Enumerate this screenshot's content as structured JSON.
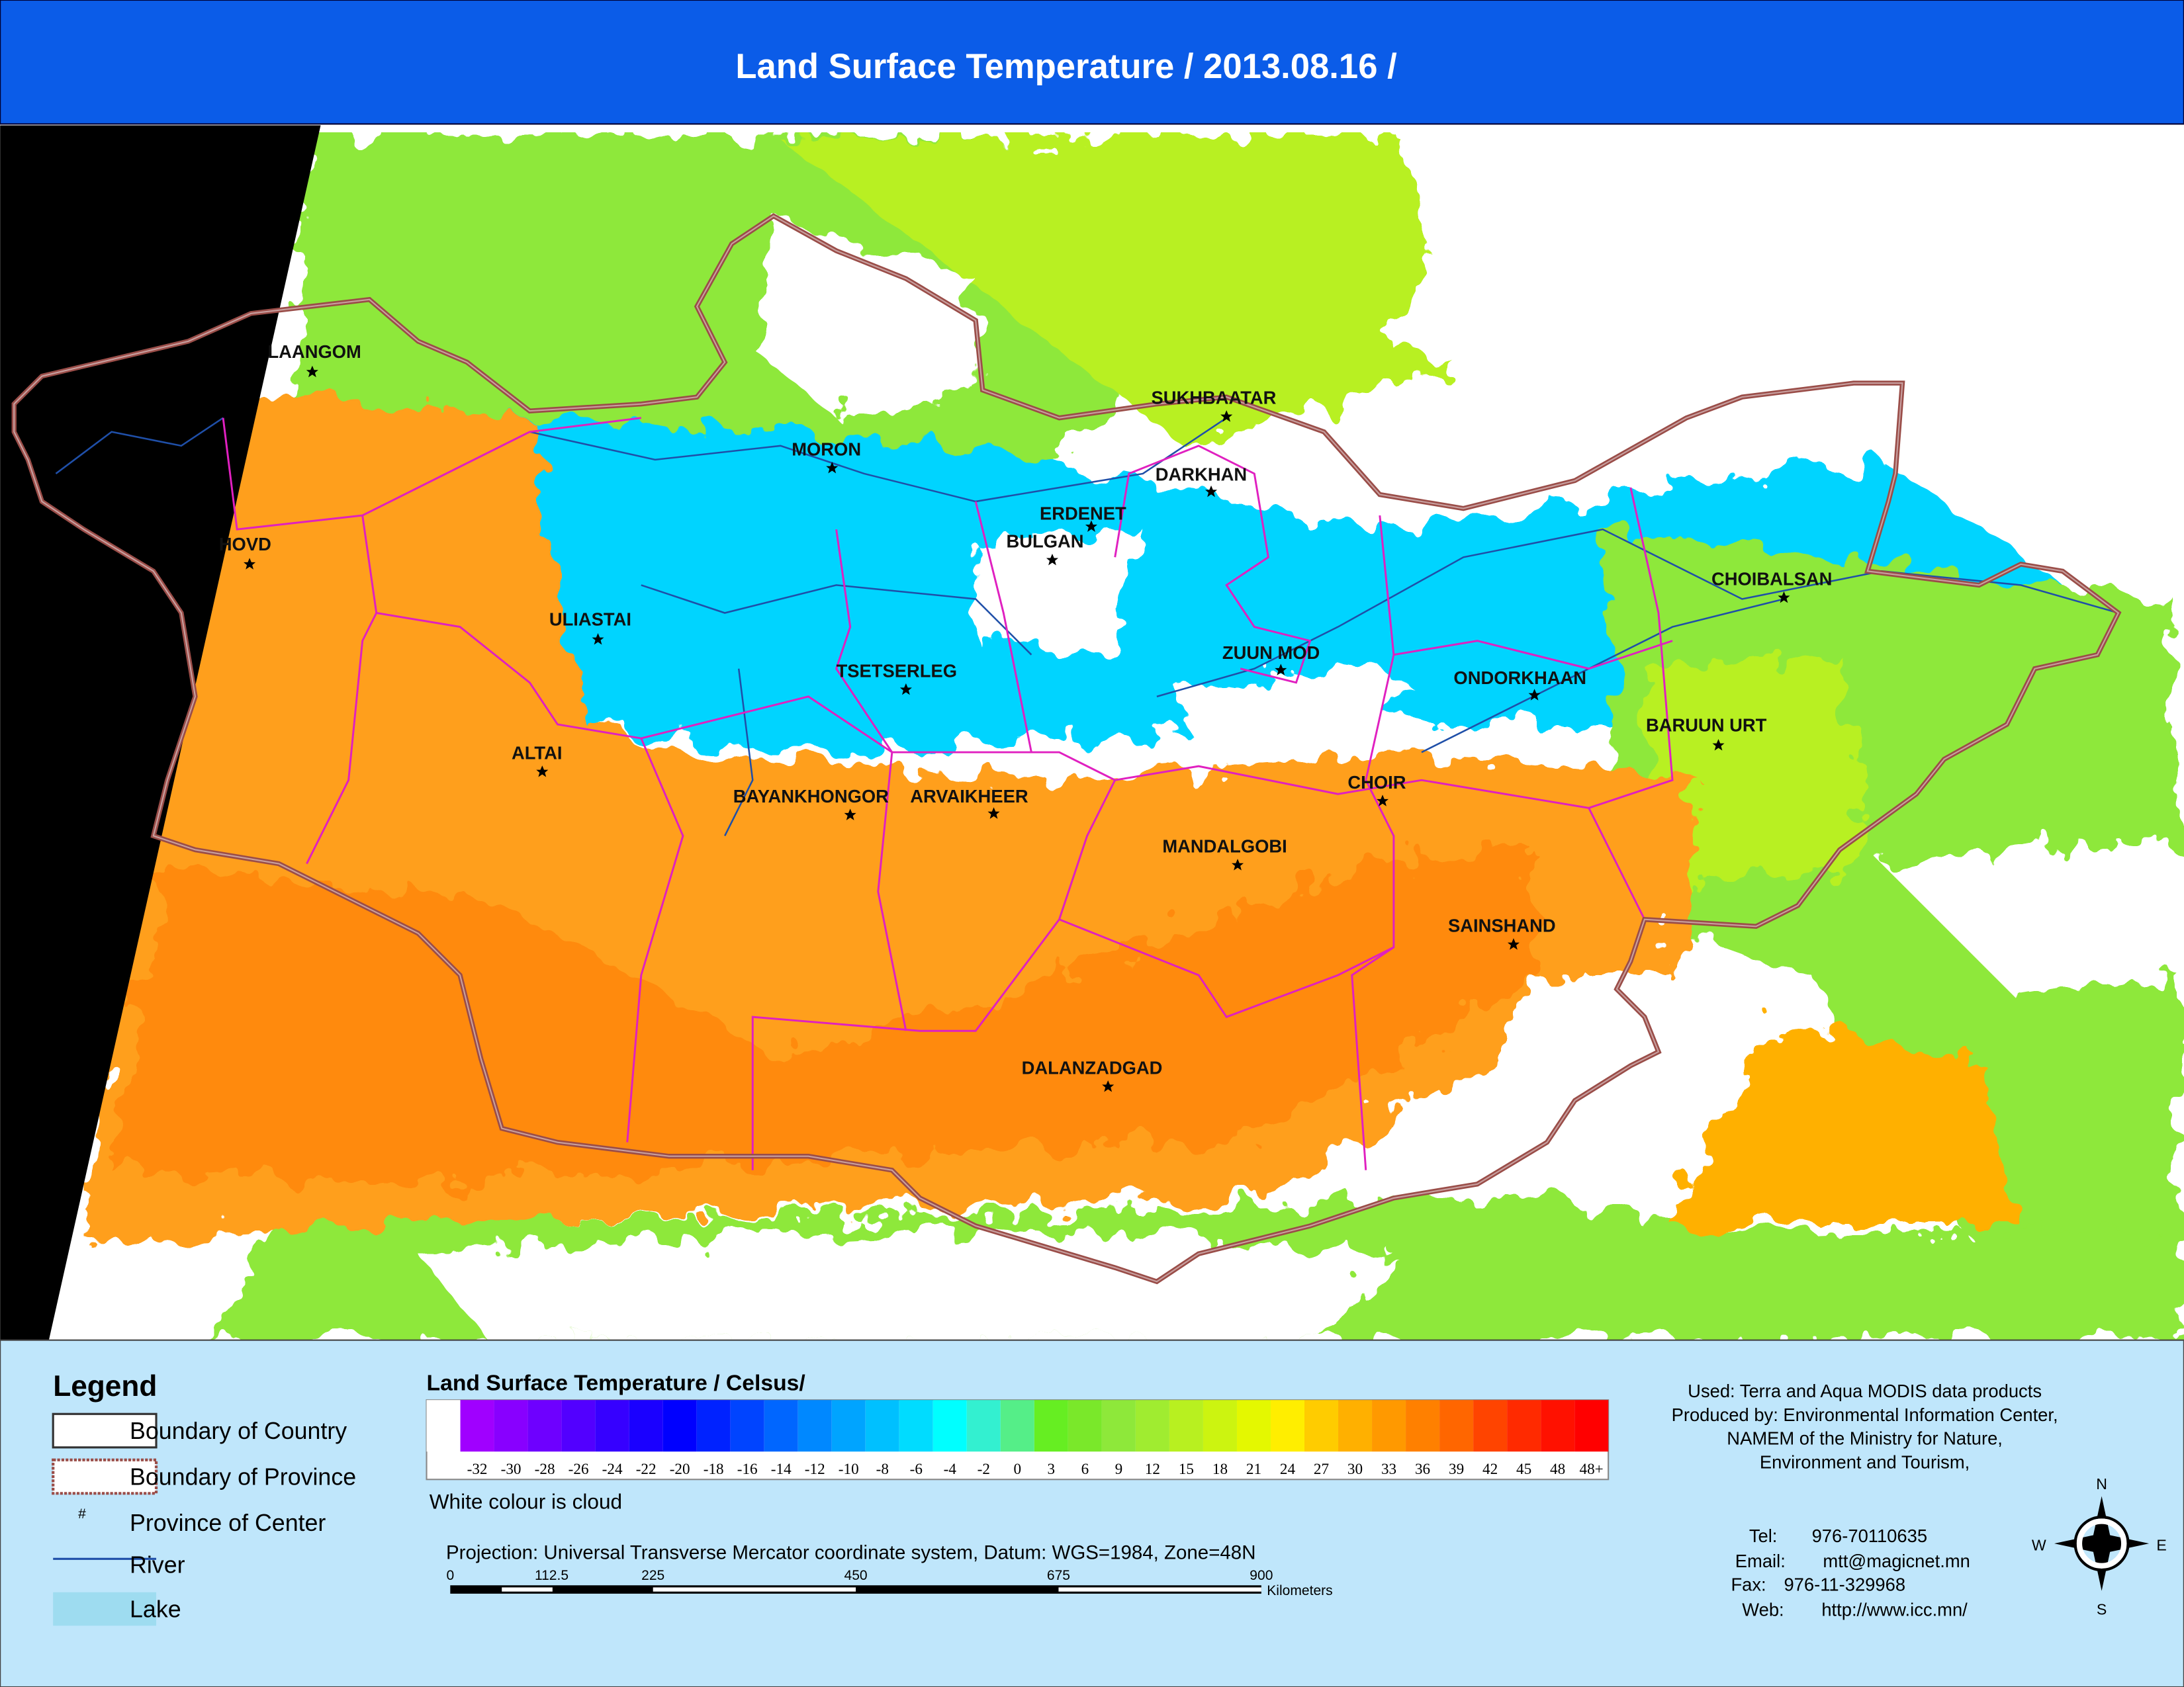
{
  "title": "Land Surface Temperature / 2013.08.16 /",
  "cities": [
    "LAANGOM",
    "HOVD",
    "ULIASTAI",
    "ALTAI",
    "MORON",
    "TSETSERLEG",
    "BAYANKHONGOR",
    "ARVAIKHEER",
    "BULGAN",
    "ERDENET",
    "SUKHBAATAR",
    "DARKHAN",
    "ZUUN MOD",
    "ONDORKHAAN",
    "CHOIBALSAN",
    "BARUUN URT",
    "CHOIR",
    "MANDALGOBI",
    "SAINSHAND",
    "DALANZADGAD"
  ],
  "legend": {
    "title": "Legend",
    "items": [
      "Boundary of Country",
      "Boundary of Province",
      "Province of Center",
      "River",
      "Lake"
    ],
    "center_symbol": "#"
  },
  "colorbar": {
    "title": "Land Surface Temperature / Celsus/",
    "note": "White colour is cloud",
    "cells": [
      {
        "color": "#ffffff"
      },
      {
        "color": "#a000ff",
        "label": -32
      },
      {
        "color": "#8800ff",
        "label": -30
      },
      {
        "color": "#6e00ff",
        "label": -28
      },
      {
        "color": "#5200ff",
        "label": -26
      },
      {
        "color": "#3600ff",
        "label": -24
      },
      {
        "color": "#1a00ff",
        "label": -22
      },
      {
        "color": "#0000ff",
        "label": -20
      },
      {
        "color": "#0022ff",
        "label": -18
      },
      {
        "color": "#0044ff",
        "label": -16
      },
      {
        "color": "#0066ff",
        "label": -14
      },
      {
        "color": "#0088ff",
        "label": -12
      },
      {
        "color": "#00a4ff",
        "label": -10
      },
      {
        "color": "#00c0ff",
        "label": -8
      },
      {
        "color": "#00dcff",
        "label": -6
      },
      {
        "color": "#00ffff",
        "label": -4
      },
      {
        "color": "#33f0d0",
        "label": -2
      },
      {
        "color": "#55ee88",
        "label": 0
      },
      {
        "color": "#66ee22",
        "label": 3
      },
      {
        "color": "#7ae82a",
        "label": 6
      },
      {
        "color": "#8ee83a",
        "label": 9
      },
      {
        "color": "#a0ec30",
        "label": 12
      },
      {
        "color": "#b8f020",
        "label": 15
      },
      {
        "color": "#ccf410",
        "label": 18
      },
      {
        "color": "#e4f800",
        "label": 21
      },
      {
        "color": "#ffee00",
        "label": 24
      },
      {
        "color": "#ffcc00",
        "label": 27
      },
      {
        "color": "#ffb000",
        "label": 30
      },
      {
        "color": "#ff9900",
        "label": 33
      },
      {
        "color": "#ff8000",
        "label": 36
      },
      {
        "color": "#ff6600",
        "label": 39
      },
      {
        "color": "#ff4400",
        "label": 42
      },
      {
        "color": "#ff2a00",
        "label": 45
      },
      {
        "color": "#ff1100",
        "label": 48
      },
      {
        "color": "#ff0000",
        "label": "48+"
      }
    ]
  },
  "projection": "Projection: Universal Transverse Mercator coordinate system, Datum: WGS=1984, Zone=48N",
  "scale_bar": {
    "ticks": [
      0,
      112.5,
      225,
      450,
      675,
      900
    ],
    "unit": "Kilometers"
  },
  "credits": [
    "Used: Terra and Aqua MODIS data products",
    "Produced by: Environmental Information Center,",
    "NAMEM of the Ministry for Nature,",
    "Environment and Tourism,"
  ],
  "contacts": [
    {
      "label": "Tel:",
      "value": "976-70110635"
    },
    {
      "label": "Email:",
      "value": "mtt@magicnet.mn"
    },
    {
      "label": "Fax:",
      "value": "976-11-329968"
    },
    {
      "label": "Web:",
      "value": "http://www.icc.mn/"
    }
  ],
  "compass": {
    "n": "N",
    "e": "E",
    "s": "S",
    "w": "W"
  }
}
